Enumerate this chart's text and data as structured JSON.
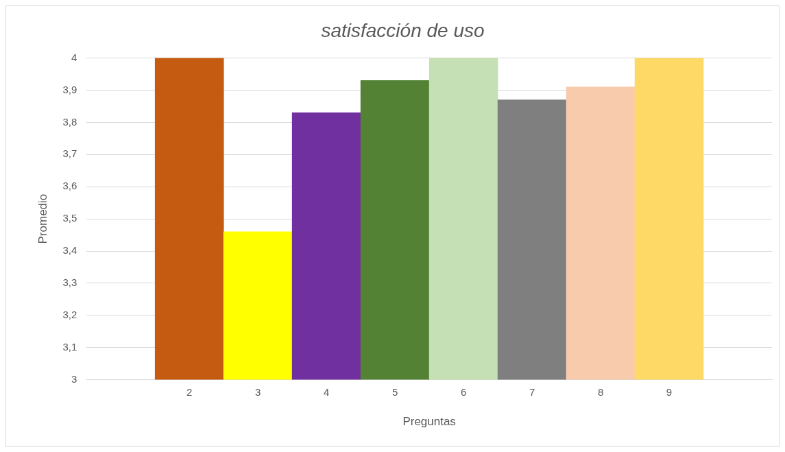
{
  "chart_data": {
    "type": "bar",
    "title": "satisfacción de uso",
    "xlabel": "Preguntas",
    "ylabel": "Promedio",
    "categories": [
      null,
      "2",
      "3",
      "4",
      "5",
      "6",
      "7",
      "8",
      "9",
      null
    ],
    "values": [
      null,
      4,
      3.46,
      3.83,
      3.93,
      4,
      3.87,
      3.91,
      4,
      null
    ],
    "colors": [
      "#c55a11",
      "#c55a11",
      "#ffff00",
      "#7030a0",
      "#548235",
      "#c5e0b4",
      "#7f7f7f",
      "#f8cbad",
      "#ffd966",
      "#ffd966"
    ],
    "ylim": [
      3,
      4
    ],
    "yticks": [
      3,
      {
        "value": 3.1,
        "label": "3,1"
      },
      {
        "value": 3.2,
        "label": "3,2"
      },
      {
        "value": 3.3,
        "label": "3,3"
      },
      {
        "value": 3.4,
        "label": "3,4"
      },
      {
        "value": 3.5,
        "label": "3,5"
      },
      {
        "value": 3.6,
        "label": "3,6"
      },
      {
        "value": 3.7,
        "label": "3,7"
      },
      {
        "value": 3.8,
        "label": "3,8"
      },
      {
        "value": 3.9,
        "label": "3,9"
      },
      4
    ],
    "grid": "y",
    "legend": false
  }
}
